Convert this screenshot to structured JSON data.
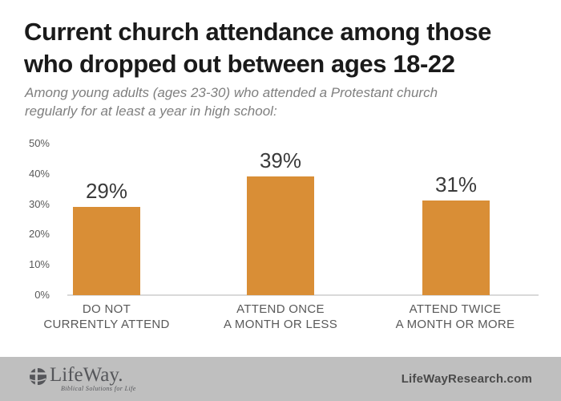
{
  "header": {
    "title_line1": "Current church attendance among those",
    "title_line2": "who dropped out between ages 18-22",
    "subtitle_line1": "Among young adults (ages 23-30) who attended a Protestant church",
    "subtitle_line2": "regularly for at least a year in high school:"
  },
  "chart_data": {
    "type": "bar",
    "title": "Current church attendance among those who dropped out between ages 18-22",
    "subtitle": "Among young adults (ages 23-30) who attended a Protestant church regularly for at least a year in high school:",
    "categories": [
      "DO NOT CURRENTLY ATTEND",
      "ATTEND ONCE A MONTH OR LESS",
      "ATTEND TWICE A MONTH OR MORE"
    ],
    "category_lines": [
      [
        "DO NOT",
        "CURRENTLY ATTEND"
      ],
      [
        "ATTEND ONCE",
        "A MONTH OR LESS"
      ],
      [
        "ATTEND TWICE",
        "A MONTH OR MORE"
      ]
    ],
    "values": [
      29,
      39,
      31
    ],
    "value_labels": [
      "29%",
      "39%",
      "31%"
    ],
    "xlabel": "",
    "ylabel": "",
    "ylim": [
      0,
      50
    ],
    "y_ticks": [
      "50%",
      "40%",
      "30%",
      "20%",
      "10%",
      "0%"
    ],
    "grid": "off",
    "legend": "none",
    "bar_color": "#d98e36"
  },
  "footer": {
    "logo_name": "LifeWay.",
    "logo_tagline": "Biblical Solutions for Life",
    "site": "LifeWayResearch.com"
  },
  "colors": {
    "bar": "#d98e36",
    "title_text": "#1a1a1a",
    "subtitle_text": "#7f7f7f",
    "axis_text": "#595959",
    "value_label_text": "#3a3a3a",
    "baseline": "#d9d9d9",
    "footer_background": "#bfbfbf",
    "footer_text": "#4a4a4a",
    "logo_gray": "#55565a"
  }
}
